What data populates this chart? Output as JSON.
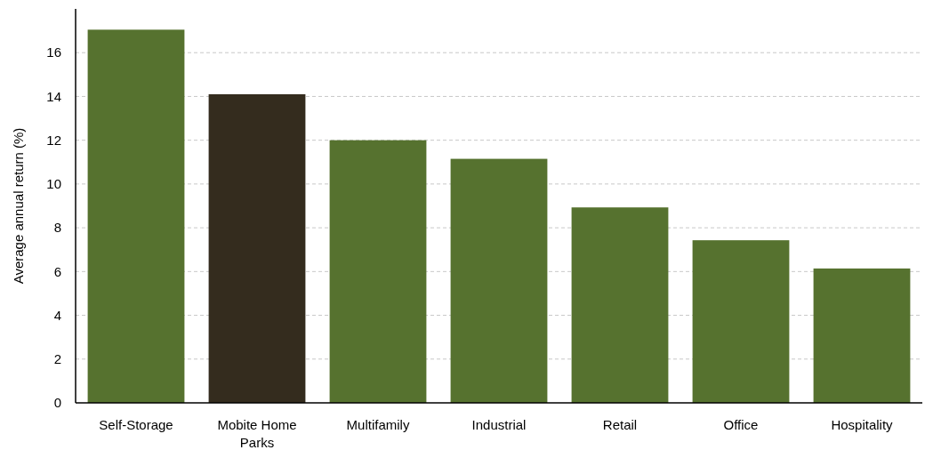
{
  "chart_data": {
    "type": "bar",
    "ylabel": "Average annual return (%)",
    "categories": [
      "Self-Storage",
      "Mobite Home Parks",
      "Multifamily",
      "Industrial",
      "Retail",
      "Office",
      "Hospitality"
    ],
    "values": [
      17.05,
      14.1,
      12.0,
      11.15,
      8.93,
      7.43,
      6.14
    ],
    "colors": [
      "#56722f",
      "#342c1e",
      "#56722f",
      "#56722f",
      "#56722f",
      "#56722f",
      "#56722f"
    ],
    "ylim": [
      0,
      18
    ],
    "yticks": [
      0,
      2,
      4,
      6,
      8,
      10,
      12,
      14,
      16
    ],
    "grid": "y"
  }
}
